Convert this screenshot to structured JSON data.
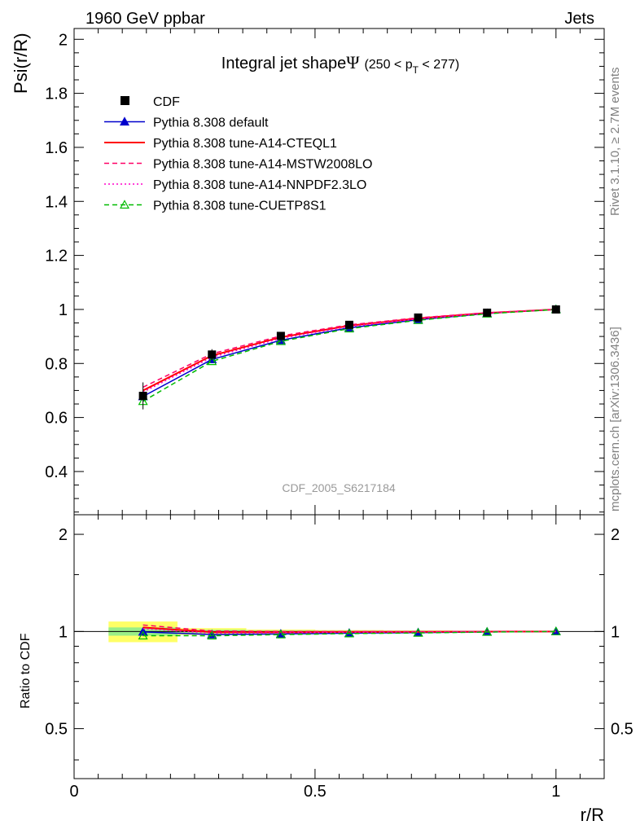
{
  "header": {
    "left": "1960 GeV ppbar",
    "right": "Jets"
  },
  "side_labels": {
    "rivet": "Rivet 3.1.10, ≥ 2.7M events",
    "mcplots": "mcplots.cern.ch [arXiv:1306.3436]"
  },
  "colors": {
    "cdf": "#000000",
    "default": "#0000cc",
    "cteql1": "#ff0000",
    "mstw": "#ff0066",
    "nnpdf": "#ff00cc",
    "cuetp8s1": "#00bb00",
    "band_outer": "#ffff66",
    "band_inner": "#99ee88"
  },
  "chart_data": {
    "type": "line",
    "title_prefix": "Integral jet shape",
    "title_symbol": "Ψ",
    "title_range_open": "(250 < p",
    "title_range_sub": "T",
    "title_range_close": " < 277)",
    "watermark": "CDF_2005_S6217184",
    "xlabel": "r/R",
    "ylabel": "Psi(r/R)",
    "ratio_ylabel": "Ratio to CDF",
    "xlim": [
      0,
      1.1
    ],
    "ylim": [
      0.24,
      2.04
    ],
    "ratio_ylim": [
      0.35,
      2.3
    ],
    "ratio_scale": "log",
    "x_ticks": [
      {
        "value": 0,
        "label": "0"
      },
      {
        "value": 0.5,
        "label": "0.5"
      },
      {
        "value": 1,
        "label": "1"
      }
    ],
    "y_ticks": [
      {
        "value": 0.4,
        "label": "0.4"
      },
      {
        "value": 0.6,
        "label": "0.6"
      },
      {
        "value": 0.8,
        "label": "0.8"
      },
      {
        "value": 1.0,
        "label": "1"
      },
      {
        "value": 1.2,
        "label": "1.2"
      },
      {
        "value": 1.4,
        "label": "1.4"
      },
      {
        "value": 1.6,
        "label": "1.6"
      },
      {
        "value": 1.8,
        "label": "1.8"
      },
      {
        "value": 2.0,
        "label": "2"
      }
    ],
    "ratio_ticks": [
      {
        "value": 0.5,
        "label": "0.5"
      },
      {
        "value": 1,
        "label": "1"
      },
      {
        "value": 2,
        "label": "2"
      }
    ],
    "x": [
      0.143,
      0.286,
      0.429,
      0.571,
      0.714,
      0.857,
      1.0
    ],
    "data": {
      "name": "CDF",
      "values": [
        0.68,
        0.833,
        0.902,
        0.943,
        0.97,
        0.988,
        1.0
      ],
      "band_inner": [
        0.02,
        0.01,
        0.006,
        0.005,
        0.004,
        0.003,
        0.0
      ],
      "band_outer": [
        0.05,
        0.02,
        0.012,
        0.009,
        0.007,
        0.004,
        0.0
      ]
    },
    "series": [
      {
        "name": "Pythia 8.308 default",
        "values": [
          0.678,
          0.815,
          0.886,
          0.932,
          0.962,
          0.985,
          1.0
        ],
        "color": "#0000cc",
        "dash": "solid",
        "marker": "triangle-filled"
      },
      {
        "name": "Pythia 8.308 tune-A14-CTEQL1",
        "values": [
          0.7,
          0.829,
          0.897,
          0.94,
          0.967,
          0.987,
          1.0
        ],
        "color": "#ff0000",
        "dash": "solid",
        "marker": "none"
      },
      {
        "name": "Pythia 8.308 tune-A14-MSTW2008LO",
        "values": [
          0.712,
          0.836,
          0.902,
          0.943,
          0.969,
          0.988,
          1.0
        ],
        "color": "#ff0066",
        "dash": "dashed",
        "marker": "none"
      },
      {
        "name": "Pythia 8.308 tune-A14-NNPDF2.3LO",
        "values": [
          0.694,
          0.823,
          0.893,
          0.937,
          0.965,
          0.986,
          1.0
        ],
        "color": "#ff00cc",
        "dash": "dotted",
        "marker": "none"
      },
      {
        "name": "Pythia 8.308 tune-CUETP8S1",
        "values": [
          0.66,
          0.808,
          0.882,
          0.929,
          0.96,
          0.984,
          1.0
        ],
        "color": "#00bb00",
        "dash": "dashed",
        "marker": "triangle-open"
      }
    ],
    "legend": "top-left",
    "grid": false
  }
}
